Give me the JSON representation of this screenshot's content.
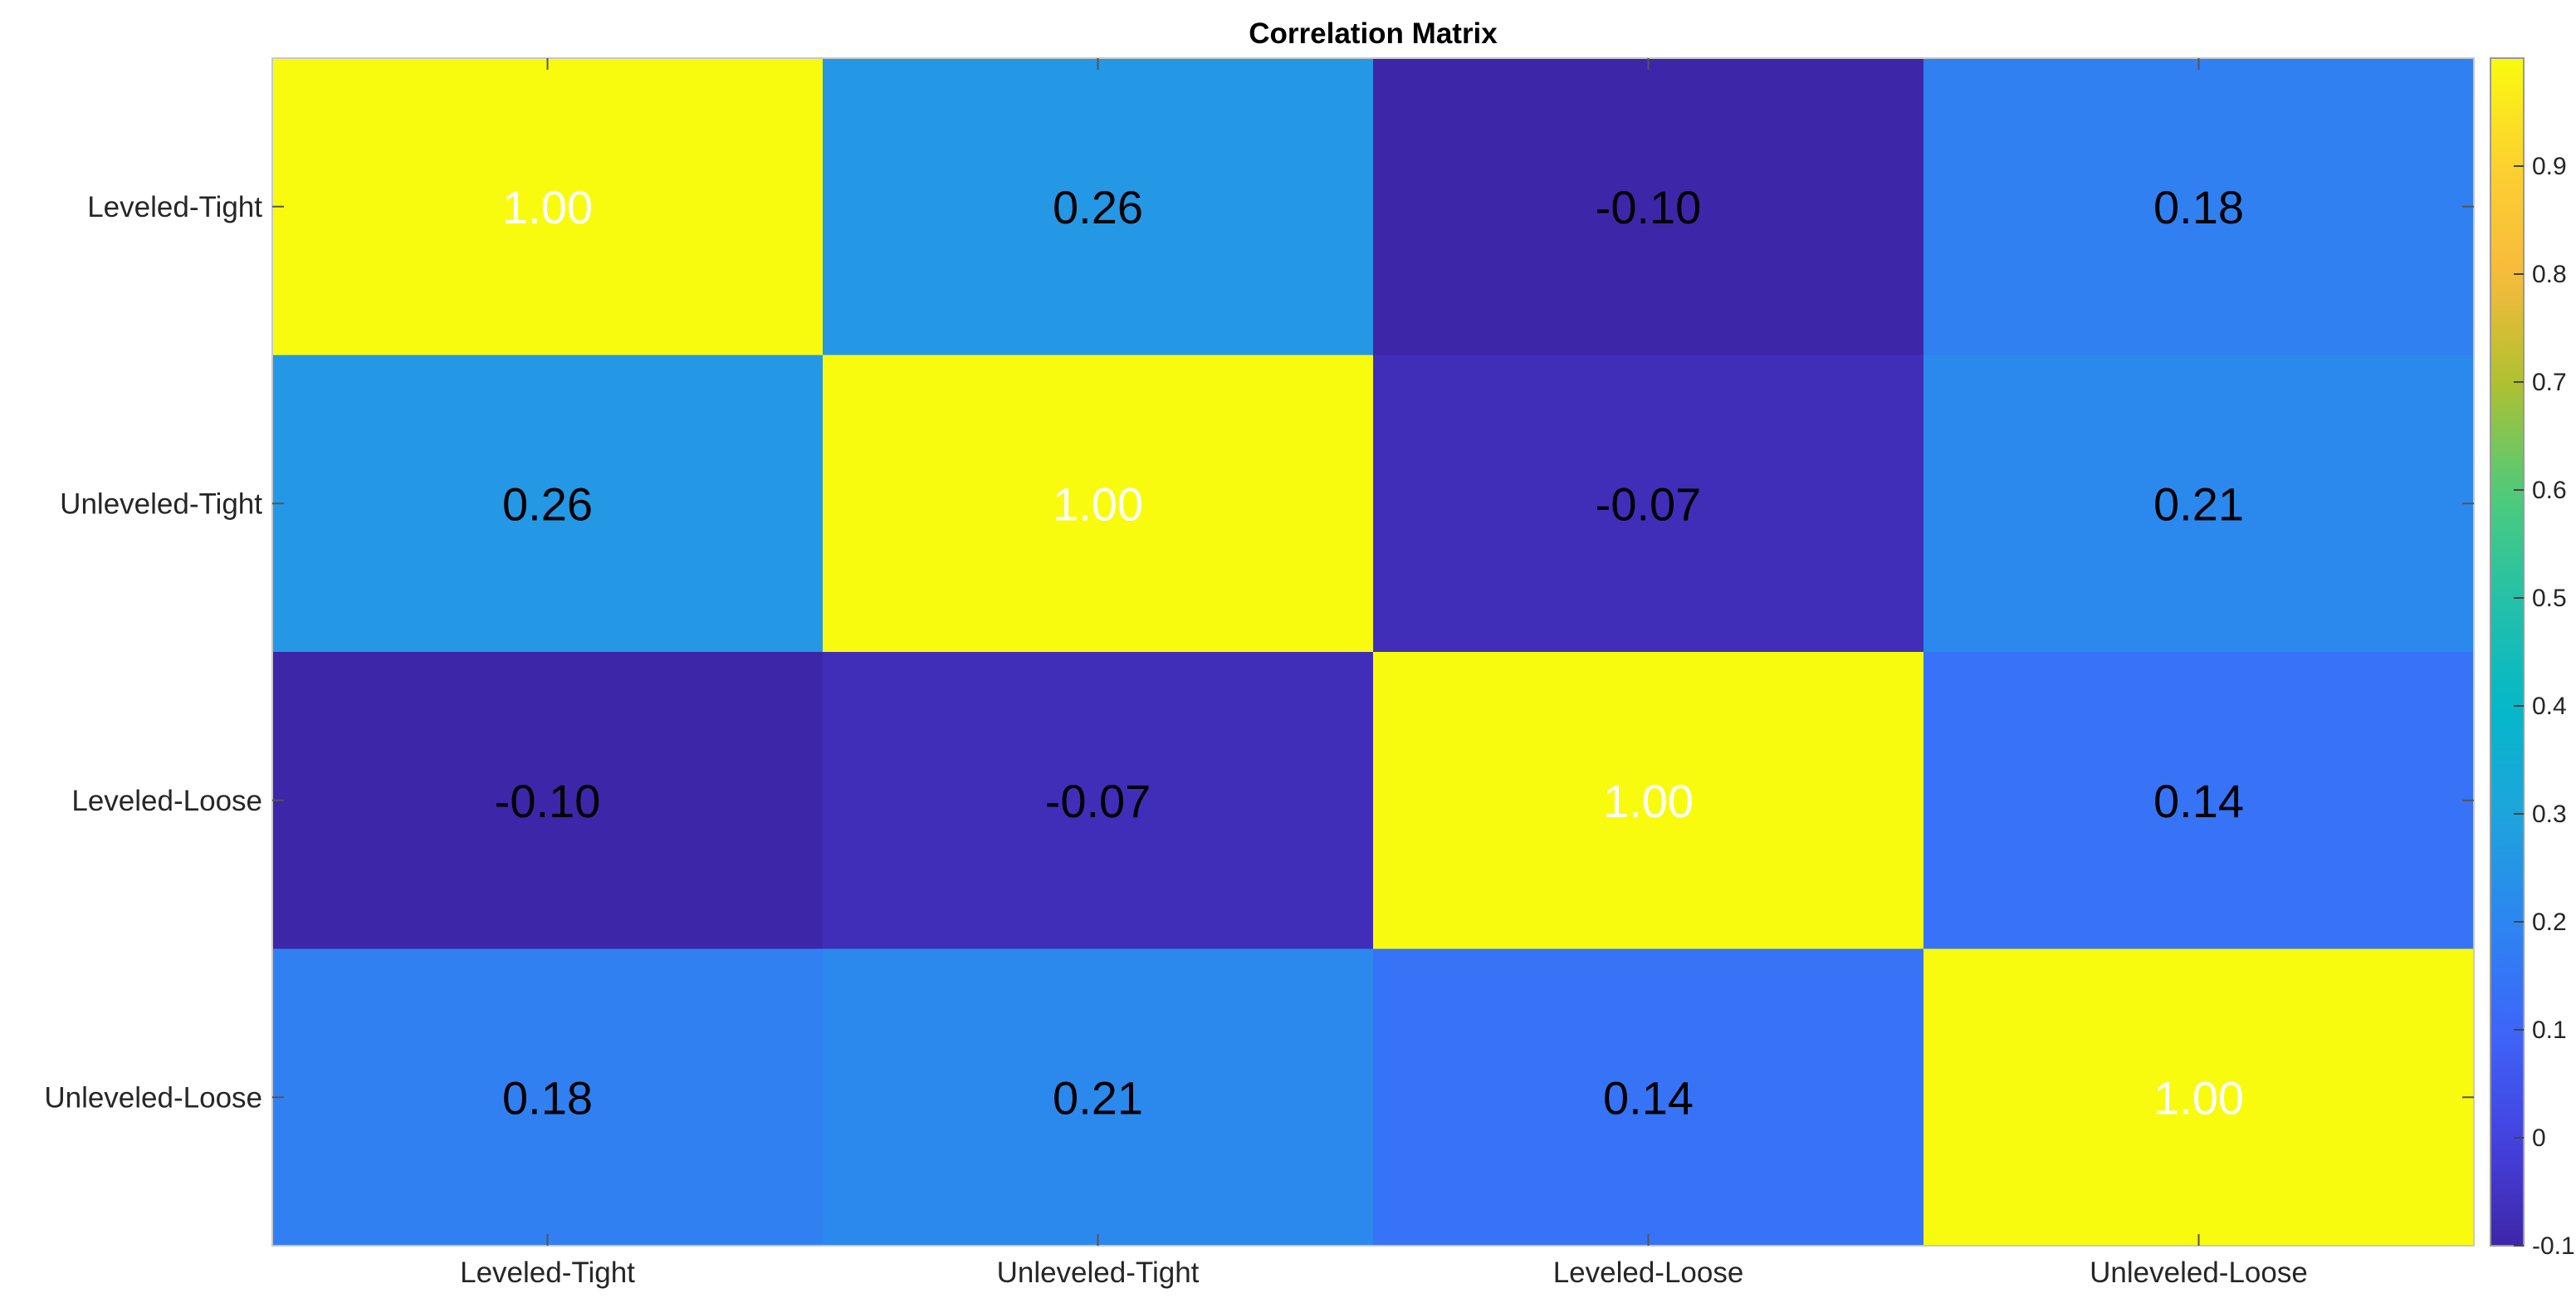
{
  "chart_data": {
    "type": "heatmap",
    "title": "Correlation Matrix",
    "x_labels": [
      "Leveled-Tight",
      "Unleveled-Tight",
      "Leveled-Loose",
      "Unleveled-Loose"
    ],
    "y_labels": [
      "Leveled-Tight",
      "Unleveled-Tight",
      "Leveled-Loose",
      "Unleveled-Loose"
    ],
    "values": [
      [
        1.0,
        0.26,
        -0.1,
        0.18
      ],
      [
        0.26,
        1.0,
        -0.07,
        0.21
      ],
      [
        -0.1,
        -0.07,
        1.0,
        0.14
      ],
      [
        0.18,
        0.21,
        0.14,
        1.0
      ]
    ],
    "value_labels": [
      [
        "1.00",
        "0.26",
        "-0.10",
        "0.18"
      ],
      [
        "0.26",
        "1.00",
        "-0.07",
        "0.21"
      ],
      [
        "-0.10",
        "-0.07",
        "1.00",
        "0.14"
      ],
      [
        "0.18",
        "0.21",
        "0.14",
        "1.00"
      ]
    ],
    "colormap": "parula",
    "clim": [
      -0.1,
      1.0
    ],
    "colorbar": {
      "ticks": [
        -0.1,
        0,
        0.1,
        0.2,
        0.3,
        0.4,
        0.5,
        0.6,
        0.7,
        0.8,
        0.9
      ],
      "tick_labels": [
        "-0.1",
        "0",
        "0.1",
        "0.2",
        "0.3",
        "0.4",
        "0.5",
        "0.6",
        "0.7",
        "0.8",
        "0.9"
      ],
      "location": "right"
    },
    "grid": false
  }
}
